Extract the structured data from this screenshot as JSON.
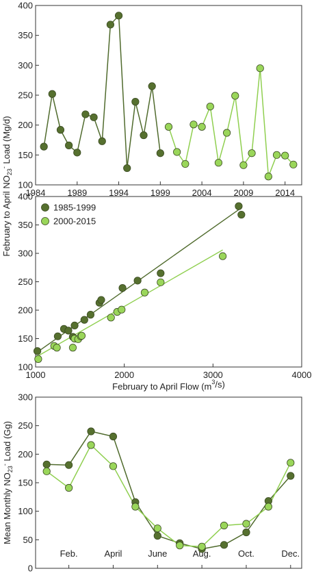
{
  "colors": {
    "dark": "#56702f",
    "light": "#9ad65a",
    "dark_line": "#4f6a2c",
    "light_line": "#8fcf4f"
  },
  "shared_ylabel": "February to April NO₂₃⁻ Load (Mg/d)",
  "shared_ylabel_parts": {
    "pre": "February to April NO",
    "sub": "23",
    "sup": "-",
    "post": " Load (Mg/d)"
  },
  "chart_data": [
    {
      "type": "line",
      "xlim": [
        1984,
        2016
      ],
      "ylim": [
        100,
        400
      ],
      "xticks": [
        1984,
        1989,
        1994,
        1999,
        2004,
        2009,
        2014
      ],
      "yticks": [
        100,
        150,
        200,
        250,
        300,
        350,
        400
      ],
      "series": [
        {
          "color_key": "dark",
          "x": [
            1985,
            1986,
            1987,
            1988,
            1989,
            1990,
            1991,
            1992,
            1993,
            1994,
            1995,
            1996,
            1997,
            1998,
            1999
          ],
          "y": [
            164,
            252,
            192,
            166,
            154,
            218,
            213,
            173,
            368,
            383,
            128,
            239,
            183,
            265,
            153
          ]
        },
        {
          "color_key": "light",
          "x": [
            2000,
            2001,
            2002,
            2003,
            2004,
            2005,
            2006,
            2007,
            2008,
            2009,
            2010,
            2011,
            2012,
            2013,
            2014,
            2015
          ],
          "y": [
            197,
            155,
            135,
            201,
            197,
            231,
            137,
            187,
            249,
            133,
            153,
            295,
            114,
            150,
            149,
            134
          ]
        }
      ]
    },
    {
      "type": "scatter",
      "xlim": [
        1000,
        4000
      ],
      "ylim": [
        100,
        400
      ],
      "xticks": [
        1000,
        2000,
        3000,
        4000
      ],
      "yticks": [
        100,
        150,
        200,
        250,
        300,
        350,
        400
      ],
      "xlabel": {
        "pre": "February to April Flow (m",
        "sup": "3",
        "post": "/s)"
      },
      "legend": [
        "1985-1999",
        "2000-2015"
      ],
      "series": [
        {
          "name": "1985-1999",
          "color_key": "dark",
          "x": [
            1020,
            1250,
            1320,
            1370,
            1420,
            1440,
            1550,
            1620,
            1720,
            1740,
            1980,
            2150,
            2410,
            3290,
            3320
          ],
          "y": [
            128,
            154,
            167,
            164,
            153,
            173,
            183,
            192,
            213,
            218,
            239,
            252,
            265,
            383,
            368
          ],
          "fit": [
            [
              1000,
              124
            ],
            [
              3300,
              378
            ]
          ]
        },
        {
          "name": "2000-2015",
          "color_key": "light",
          "x": [
            1030,
            1210,
            1240,
            1420,
            1440,
            1480,
            1510,
            1520,
            1850,
            1920,
            1970,
            2230,
            2410,
            3110
          ],
          "y": [
            114,
            137,
            134,
            134,
            150,
            149,
            154,
            155,
            187,
            197,
            201,
            231,
            249,
            295
          ],
          "fit": [
            [
              1000,
              117
            ],
            [
              3110,
              306
            ]
          ]
        }
      ]
    },
    {
      "type": "line",
      "xlim": [
        0.5,
        12.5
      ],
      "ylim": [
        0,
        300
      ],
      "categories": [
        "Feb.",
        "April",
        "June",
        "Aug.",
        "Oct.",
        "Dec."
      ],
      "category_x": [
        2,
        4,
        6,
        8,
        10,
        12
      ],
      "yticks": [
        0,
        50,
        100,
        150,
        200,
        250,
        300
      ],
      "ylabel": {
        "pre": "Mean Monthly NO",
        "sub": "23",
        "sup": "-",
        "post": " Load (Gg)"
      },
      "series": [
        {
          "color_key": "dark",
          "x": [
            1,
            2,
            3,
            4,
            5,
            6,
            7,
            8,
            9,
            10,
            11,
            12
          ],
          "y": [
            182,
            181,
            240,
            231,
            116,
            57,
            44,
            34,
            41,
            63,
            118,
            162
          ]
        },
        {
          "color_key": "light",
          "x": [
            1,
            2,
            3,
            4,
            5,
            6,
            7,
            8,
            9,
            10,
            11,
            12
          ],
          "y": [
            170,
            141,
            216,
            179,
            108,
            70,
            40,
            38,
            75,
            78,
            108,
            185
          ]
        }
      ]
    }
  ]
}
